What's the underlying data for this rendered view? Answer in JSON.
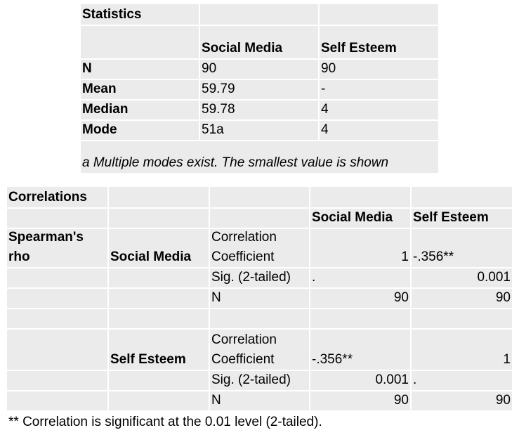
{
  "statistics": {
    "title": "Statistics",
    "columns": [
      "Social Media",
      "Self Esteem"
    ],
    "rows": [
      {
        "label": "N",
        "social_media": "90",
        "self_esteem": "90"
      },
      {
        "label": "Mean",
        "social_media": "59.79",
        "self_esteem": "-"
      },
      {
        "label": "Median",
        "social_media": "59.78",
        "self_esteem": "4"
      },
      {
        "label": "Mode",
        "social_media": "51a",
        "self_esteem": "4"
      }
    ],
    "footnote": "a Multiple modes exist. The smallest value is shown"
  },
  "correlations": {
    "title": "Correlations",
    "columns": [
      "Social Media",
      "Self Esteem"
    ],
    "method_label": "Spearman's rho",
    "groups": [
      {
        "variable": "Social Media",
        "rows": [
          {
            "label": "Correlation Coefficient",
            "social_media": "1",
            "self_esteem": "-.356**"
          },
          {
            "label": "Sig. (2-tailed)",
            "social_media": ".",
            "self_esteem": "0.001"
          },
          {
            "label": "N",
            "social_media": "90",
            "self_esteem": "90"
          }
        ]
      },
      {
        "variable": "Self Esteem",
        "rows": [
          {
            "label": "Correlation Coefficient",
            "social_media": "-.356**",
            "self_esteem": "1"
          },
          {
            "label": "Sig. (2-tailed)",
            "social_media": "0.001",
            "self_esteem": "."
          },
          {
            "label": "N",
            "social_media": "90",
            "self_esteem": "90"
          }
        ]
      }
    ],
    "footnote": "** Correlation is significant at the 0.01 level (2-tailed)."
  }
}
